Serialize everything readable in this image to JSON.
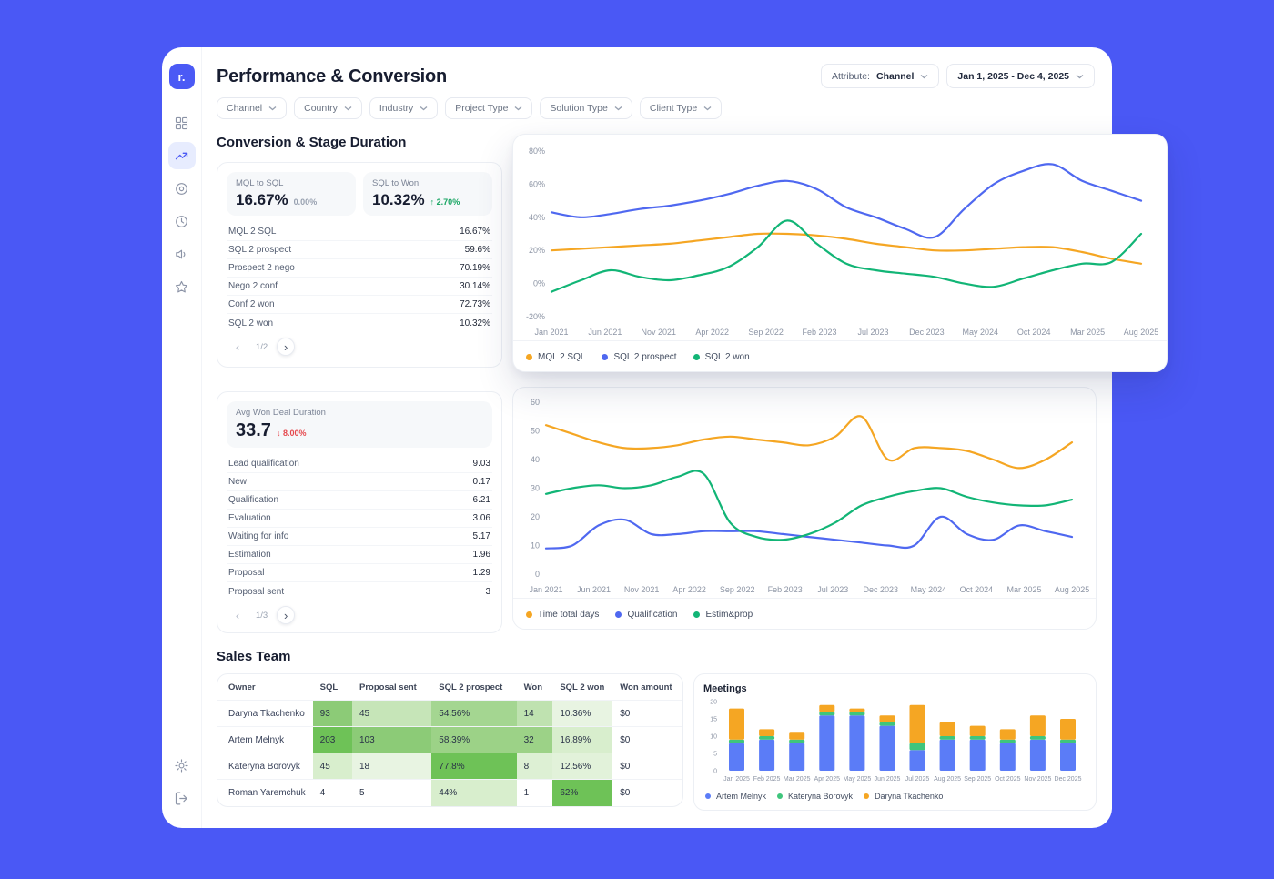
{
  "theme": {
    "brand": "#4b5af5",
    "background": "#4a58f5",
    "positive": "#17a562",
    "negative": "#e5484d"
  },
  "app": {
    "logo": "r."
  },
  "sidebar": {
    "nav_icons": [
      "dashboard-grid",
      "trending-up",
      "target",
      "clock",
      "megaphone",
      "star"
    ],
    "active_icon": "trending-up",
    "bottom_icons": [
      "gear",
      "logout"
    ]
  },
  "header": {
    "title": "Performance & Conversion",
    "attribute_prefix": "Attribute:",
    "attribute_value": "Channel",
    "date_range": "Jan 1, 2025 - Dec 4, 2025"
  },
  "filters": {
    "chips": [
      "Channel",
      "Country",
      "Industry",
      "Project Type",
      "Solution Type",
      "Client Type"
    ]
  },
  "conversion_section": {
    "title": "Conversion & Stage Duration",
    "kpis": [
      {
        "label": "MQL to SQL",
        "value": "16.67%",
        "delta": "0.00%",
        "direction": "flat"
      },
      {
        "label": "SQL to Won",
        "value": "10.32%",
        "delta": "↑ 2.70%",
        "direction": "up"
      }
    ],
    "rates": [
      {
        "label": "MQL 2 SQL",
        "value": "16.67%"
      },
      {
        "label": "SQL 2 prospect",
        "value": "59.6%"
      },
      {
        "label": "Prospect 2 nego",
        "value": "70.19%"
      },
      {
        "label": "Nego 2 conf",
        "value": "30.14%"
      },
      {
        "label": "Conf 2 won",
        "value": "72.73%"
      },
      {
        "label": "SQL 2 won",
        "value": "10.32%"
      }
    ],
    "pagination": "1/2"
  },
  "duration_section": {
    "kpi": {
      "label": "Avg Won Deal Duration",
      "value": "33.7",
      "delta": "↓ 8.00%",
      "direction": "down"
    },
    "stages": [
      {
        "label": "Lead qualification",
        "value": "9.03"
      },
      {
        "label": "New",
        "value": "0.17"
      },
      {
        "label": "Qualification",
        "value": "6.21"
      },
      {
        "label": "Evaluation",
        "value": "3.06"
      },
      {
        "label": "Waiting for info",
        "value": "5.17"
      },
      {
        "label": "Estimation",
        "value": "1.96"
      },
      {
        "label": "Proposal",
        "value": "1.29"
      },
      {
        "label": "Proposal sent",
        "value": "3"
      }
    ],
    "pagination": "1/3"
  },
  "sales_team": {
    "title": "Sales Team",
    "columns": [
      "Owner",
      "SQL",
      "Proposal sent",
      "SQL 2 prospect",
      "Won",
      "SQL 2 won",
      "Won amount"
    ],
    "rows": [
      {
        "owner": "Daryna Tkachenko",
        "cells": [
          {
            "v": "93",
            "bg": "#8ccb77"
          },
          {
            "v": "45",
            "bg": "#c6e5b8"
          },
          {
            "v": "54.56%",
            "bg": "#a4d691"
          },
          {
            "v": "14",
            "bg": "#bfe2b0"
          },
          {
            "v": "10.36%",
            "bg": "#e8f4e2"
          },
          {
            "v": "$0",
            "bg": ""
          }
        ]
      },
      {
        "owner": "Artem Melnyk",
        "cells": [
          {
            "v": "203",
            "bg": "#6ec257"
          },
          {
            "v": "103",
            "bg": "#8ccb77"
          },
          {
            "v": "58.39%",
            "bg": "#9cd287"
          },
          {
            "v": "32",
            "bg": "#9cd287"
          },
          {
            "v": "16.89%",
            "bg": "#d8eecd"
          },
          {
            "v": "$0",
            "bg": ""
          }
        ]
      },
      {
        "owner": "Kateryna Borovyk",
        "cells": [
          {
            "v": "45",
            "bg": "#d8eecd"
          },
          {
            "v": "18",
            "bg": "#e8f4e2"
          },
          {
            "v": "77.8%",
            "bg": "#6ec257"
          },
          {
            "v": "8",
            "bg": "#ddf0d4"
          },
          {
            "v": "12.56%",
            "bg": "#e2f2da"
          },
          {
            "v": "$0",
            "bg": ""
          }
        ]
      },
      {
        "owner": "Roman Yaremchuk",
        "cells": [
          {
            "v": "4",
            "bg": ""
          },
          {
            "v": "5",
            "bg": ""
          },
          {
            "v": "44%",
            "bg": "#d8eecd"
          },
          {
            "v": "1",
            "bg": ""
          },
          {
            "v": "62%",
            "bg": "#6ec257"
          },
          {
            "v": "$0",
            "bg": ""
          }
        ]
      }
    ]
  },
  "chart_data": [
    {
      "id": "conversion-trend",
      "type": "line",
      "x_labels": [
        "Jan 2021",
        "Jun 2021",
        "Nov 2021",
        "Apr 2022",
        "Sep 2022",
        "Feb 2023",
        "Jul 2023",
        "Dec 2023",
        "May 2024",
        "Oct 2024",
        "Mar 2025",
        "Aug 2025"
      ],
      "ylim": [
        -20,
        80
      ],
      "yticks": [
        80,
        60,
        40,
        20,
        0,
        -20
      ],
      "ytick_suffix": "%",
      "legend_position": "bottom",
      "grid": false,
      "series": [
        {
          "name": "MQL 2 SQL",
          "color": "#f5a623",
          "values": [
            20,
            21,
            22,
            23,
            24,
            26,
            28,
            30,
            30,
            29,
            27,
            24,
            22,
            20,
            20,
            21,
            22,
            22,
            19,
            15,
            12
          ]
        },
        {
          "name": "SQL 2 prospect",
          "color": "#4f68f0",
          "values": [
            43,
            40,
            42,
            45,
            47,
            50,
            54,
            59,
            62,
            57,
            46,
            40,
            33,
            28,
            45,
            60,
            68,
            72,
            62,
            56,
            50
          ]
        },
        {
          "name": "SQL 2 won",
          "color": "#12b576",
          "values": [
            -5,
            2,
            8,
            4,
            2,
            5,
            10,
            22,
            38,
            24,
            12,
            8,
            6,
            4,
            0,
            -2,
            3,
            8,
            12,
            13,
            30
          ]
        }
      ]
    },
    {
      "id": "duration-trend",
      "type": "line",
      "x_labels": [
        "Jan 2021",
        "Jun 2021",
        "Nov 2021",
        "Apr 2022",
        "Sep 2022",
        "Feb 2023",
        "Jul 2023",
        "Dec 2023",
        "May 2024",
        "Oct 2024",
        "Mar 2025",
        "Aug 2025"
      ],
      "ylim": [
        0,
        60
      ],
      "yticks": [
        60,
        50,
        40,
        30,
        20,
        10,
        0
      ],
      "ytick_suffix": "",
      "legend_position": "bottom",
      "grid": false,
      "series": [
        {
          "name": "Time total days",
          "color": "#f5a623",
          "values": [
            52,
            49,
            46,
            44,
            44,
            45,
            47,
            48,
            47,
            46,
            45,
            48,
            55,
            40,
            44,
            44,
            43,
            40,
            37,
            40,
            46
          ]
        },
        {
          "name": "Qualification",
          "color": "#4f68f0",
          "values": [
            9,
            10,
            17,
            19,
            14,
            14,
            15,
            15,
            15,
            14,
            13,
            12,
            11,
            10,
            10,
            20,
            14,
            12,
            17,
            15,
            13
          ]
        },
        {
          "name": "Estim&prop",
          "color": "#12b576",
          "values": [
            28,
            30,
            31,
            30,
            31,
            34,
            35,
            18,
            13,
            12,
            14,
            18,
            24,
            27,
            29,
            30,
            27,
            25,
            24,
            24,
            26
          ]
        }
      ]
    },
    {
      "id": "meetings",
      "type": "stacked_bar",
      "title": "Meetings",
      "x_labels": [
        "Jan 2025",
        "Feb 2025",
        "Mar 2025",
        "Apr 2025",
        "May 2025",
        "Jun 2025",
        "Jul 2025",
        "Aug 2025",
        "Sep 2025",
        "Oct 2025",
        "Nov 2025",
        "Dec 2025"
      ],
      "ylim": [
        0,
        20
      ],
      "yticks": [
        20,
        15,
        10,
        5,
        0
      ],
      "legend_position": "bottom",
      "grid": false,
      "series": [
        {
          "name": "Artem Melnyk",
          "color": "#5b7cf7",
          "values": [
            8,
            9,
            8,
            16,
            16,
            13,
            6,
            9,
            9,
            8,
            9,
            8
          ]
        },
        {
          "name": "Kateryna Borovyk",
          "color": "#3fc57c",
          "values": [
            1,
            1,
            1,
            1,
            1,
            1,
            2,
            1,
            1,
            1,
            1,
            1
          ]
        },
        {
          "name": "Daryna Tkachenko",
          "color": "#f5a623",
          "values": [
            9,
            2,
            2,
            2,
            1,
            2,
            11,
            4,
            3,
            3,
            6,
            6
          ]
        }
      ]
    }
  ]
}
